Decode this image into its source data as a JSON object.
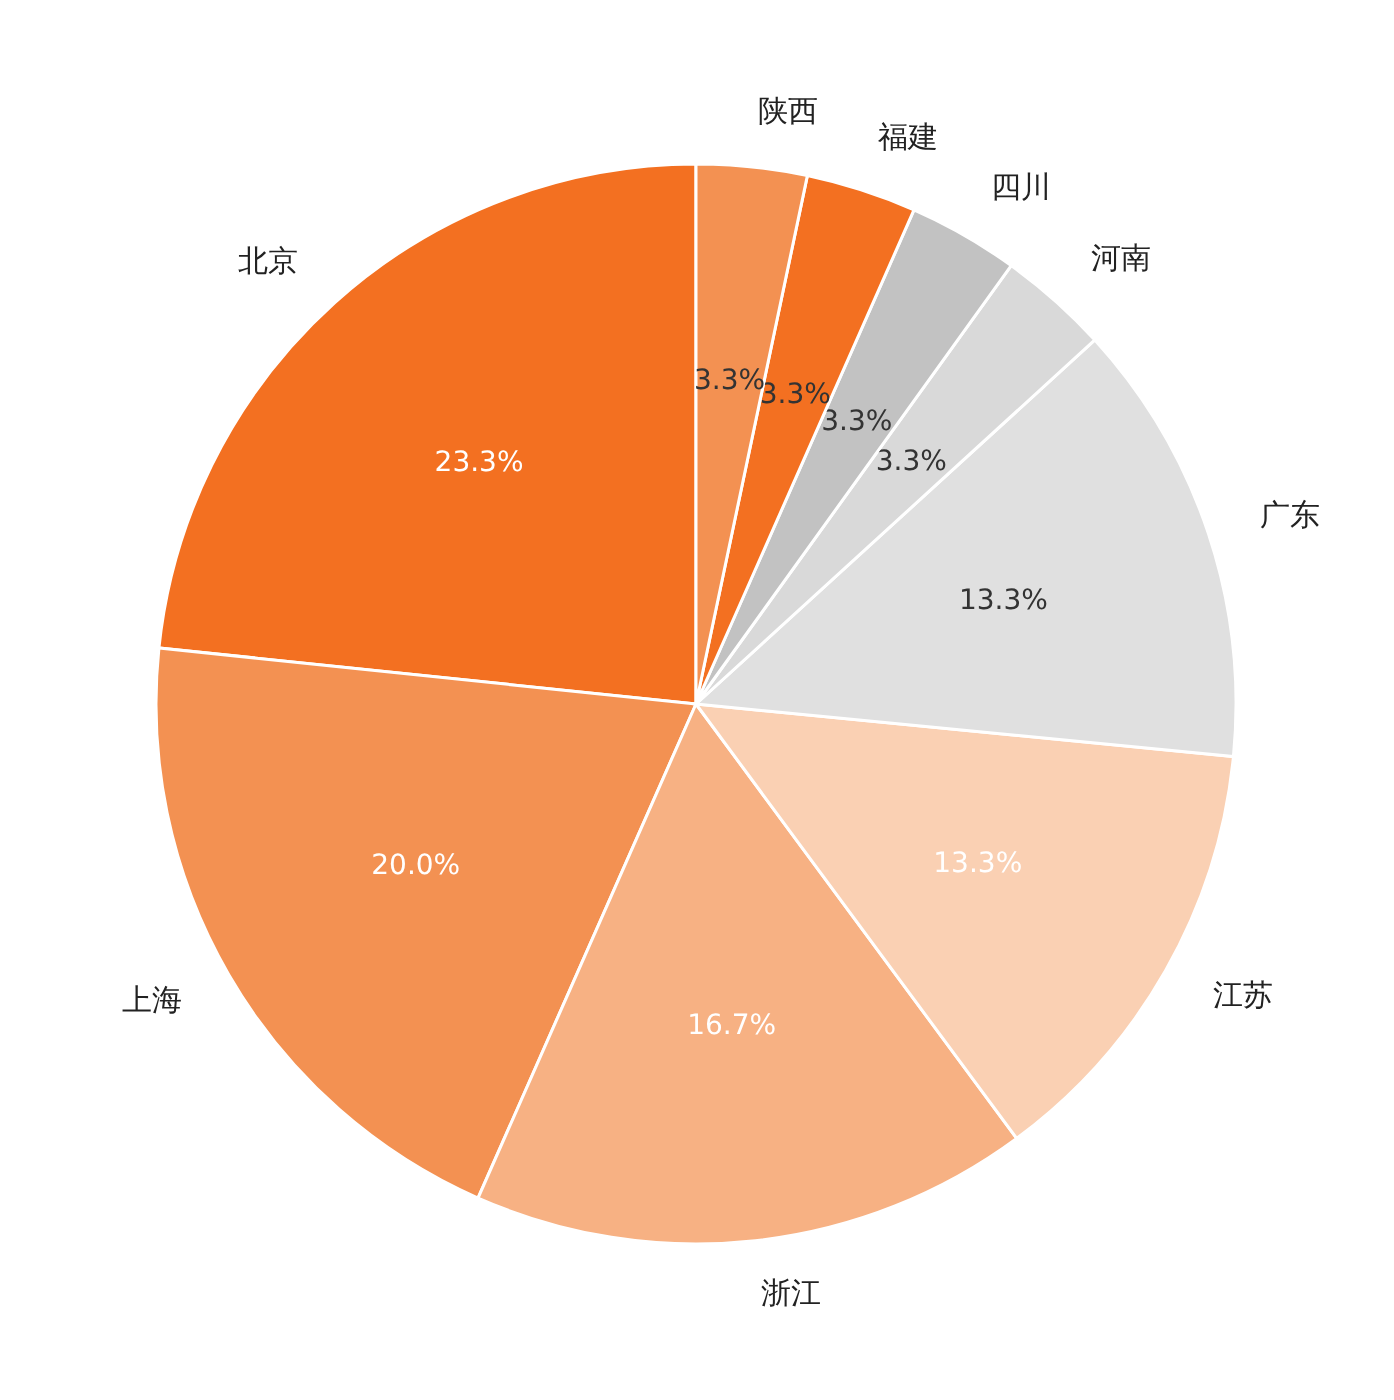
{
  "chart_data": {
    "type": "pie",
    "categories": [
      "北京",
      "上海",
      "浙江",
      "江苏",
      "广东",
      "河南",
      "四川",
      "福建",
      "陕西"
    ],
    "values": [
      23.3,
      20.0,
      16.7,
      13.3,
      13.3,
      3.3,
      3.3,
      3.3,
      3.3
    ],
    "value_labels": [
      "23.3%",
      "20.0%",
      "16.7%",
      "13.3%",
      "13.3%",
      "3.3%",
      "3.3%",
      "3.3%",
      "3.3%"
    ],
    "colors": [
      "#f37021",
      "#f39152",
      "#f7b183",
      "#fad0b3",
      "#e0e0e0",
      "#d9d9d9",
      "#c2c2c2",
      "#f37021",
      "#f39152"
    ]
  }
}
